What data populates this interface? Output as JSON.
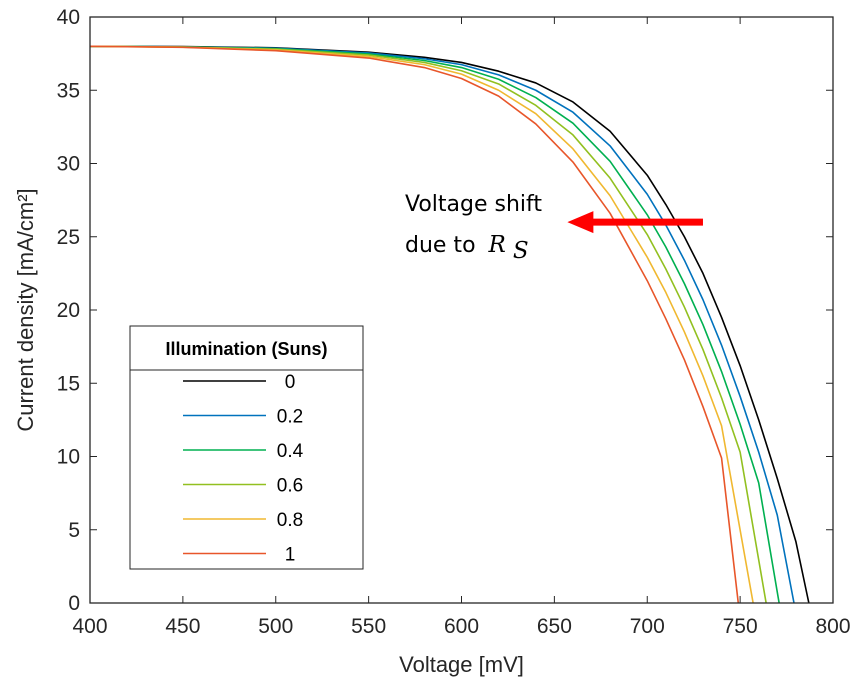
{
  "chart_data": {
    "type": "line",
    "xlabel": "Voltage [mV]",
    "ylabel": "Current density [mA/cm²]",
    "xlim": [
      400,
      800
    ],
    "ylim": [
      0,
      40
    ],
    "xticks": [
      400,
      450,
      500,
      550,
      600,
      650,
      700,
      750,
      800
    ],
    "yticks": [
      0,
      5,
      10,
      15,
      20,
      25,
      30,
      35,
      40
    ],
    "grid": false,
    "legend": {
      "title": "Illumination (Suns)",
      "placement": "lower-left"
    },
    "annotation": {
      "text_line1": "Voltage shift",
      "text_line2": "due to",
      "math_main": "R",
      "math_sub": "S",
      "arrow_color": "#ff0000",
      "arrow_from": [
        730,
        26
      ],
      "arrow_to": [
        657,
        26
      ]
    },
    "series": [
      {
        "name": "0",
        "color": "#000000",
        "x": [
          400,
          450,
          500,
          550,
          580,
          600,
          620,
          640,
          660,
          680,
          700,
          710,
          720,
          730,
          740,
          750,
          760,
          770,
          780,
          787
        ],
        "y": [
          38.0,
          37.98,
          37.9,
          37.6,
          37.25,
          36.9,
          36.3,
          35.5,
          34.2,
          32.2,
          29.2,
          27.2,
          25.0,
          22.5,
          19.5,
          16.2,
          12.5,
          8.5,
          4.2,
          0
        ]
      },
      {
        "name": "0.2",
        "color": "#0072bd",
        "x": [
          400,
          450,
          500,
          550,
          580,
          600,
          620,
          640,
          660,
          680,
          700,
          710,
          720,
          730,
          740,
          750,
          760,
          770,
          779
        ],
        "y": [
          38.0,
          37.97,
          37.87,
          37.55,
          37.15,
          36.75,
          36.05,
          35.0,
          33.5,
          31.2,
          27.9,
          25.8,
          23.4,
          20.7,
          17.6,
          14.1,
          10.3,
          6.0,
          0
        ]
      },
      {
        "name": "0.4",
        "color": "#00b050",
        "x": [
          400,
          450,
          500,
          550,
          580,
          600,
          620,
          640,
          660,
          680,
          700,
          710,
          720,
          730,
          740,
          750,
          760,
          771
        ],
        "y": [
          38.0,
          37.96,
          37.84,
          37.48,
          37.03,
          36.55,
          35.75,
          34.5,
          32.75,
          30.15,
          26.5,
          24.3,
          21.8,
          19.0,
          15.8,
          12.2,
          8.2,
          0
        ]
      },
      {
        "name": "0.6",
        "color": "#92c020",
        "x": [
          400,
          450,
          500,
          550,
          580,
          600,
          620,
          640,
          660,
          680,
          700,
          710,
          720,
          730,
          740,
          750,
          764
        ],
        "y": [
          38.0,
          37.95,
          37.8,
          37.4,
          36.9,
          36.33,
          35.43,
          33.97,
          31.95,
          29.0,
          25.15,
          22.8,
          20.2,
          17.3,
          14.0,
          10.3,
          0
        ]
      },
      {
        "name": "0.8",
        "color": "#f0b830",
        "x": [
          400,
          450,
          500,
          550,
          580,
          600,
          620,
          640,
          660,
          680,
          700,
          710,
          720,
          730,
          740,
          757
        ],
        "y": [
          38.0,
          37.94,
          37.75,
          37.3,
          36.75,
          36.1,
          35.0,
          33.4,
          31.0,
          27.8,
          23.6,
          21.2,
          18.5,
          15.5,
          12.1,
          0
        ]
      },
      {
        "name": "1",
        "color": "#e8562a",
        "x": [
          400,
          450,
          500,
          550,
          580,
          600,
          620,
          640,
          660,
          680,
          700,
          710,
          720,
          730,
          740,
          749
        ],
        "y": [
          38.0,
          37.93,
          37.7,
          37.2,
          36.55,
          35.8,
          34.6,
          32.7,
          30.1,
          26.6,
          22.0,
          19.4,
          16.6,
          13.4,
          9.9,
          0
        ]
      }
    ]
  }
}
